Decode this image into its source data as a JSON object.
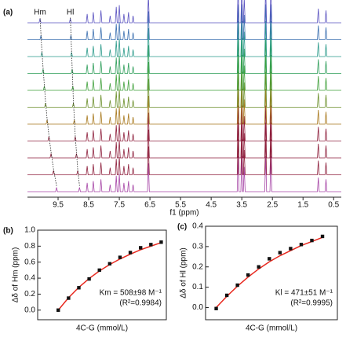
{
  "chart_data": [
    {
      "type": "nmr",
      "label": "(a)",
      "hm_label": "Hm",
      "hl_label": "Hl",
      "xlabel": "f1 (ppm)",
      "xlim": [
        10.5,
        0.25
      ],
      "xticks": [
        9.5,
        8.5,
        7.5,
        6.5,
        5.5,
        4.5,
        3.5,
        2.5,
        1.5,
        0.5
      ],
      "ylim": [
        0,
        100
      ],
      "signal_height": 12,
      "peaks": {
        "ppm": [
          8.55,
          8.35,
          8.1,
          7.8,
          7.6,
          7.5,
          7.35,
          7.2,
          7.05,
          6.55,
          3.62,
          3.5,
          3.42,
          2.72,
          2.55,
          1.0,
          0.75
        ],
        "height": [
          25,
          30,
          35,
          20,
          45,
          50,
          25,
          30,
          20,
          80,
          100,
          100,
          70,
          100,
          100,
          40,
          35
        ]
      },
      "series": [
        {
          "color": "#a645a6",
          "hm": 9.55,
          "hl": 8.8
        },
        {
          "color": "#8e1f3c",
          "hm": 9.65,
          "hl": 8.86
        },
        {
          "color": "#8e1f3c",
          "hm": 9.73,
          "hl": 8.9
        },
        {
          "color": "#8e1f3c",
          "hm": 9.8,
          "hl": 8.94
        },
        {
          "color": "#a8781c",
          "hm": 9.86,
          "hl": 8.97
        },
        {
          "color": "#6b8f2a",
          "hm": 9.91,
          "hl": 9.0
        },
        {
          "color": "#3fa03a",
          "hm": 9.95,
          "hl": 9.02
        },
        {
          "color": "#2e9e5a",
          "hm": 9.99,
          "hl": 9.04
        },
        {
          "color": "#2a9a8a",
          "hm": 10.03,
          "hl": 9.06
        },
        {
          "color": "#3a6fb0",
          "hm": 10.06,
          "hl": 9.08
        },
        {
          "color": "#5a52c0",
          "hm": 10.09,
          "hl": 9.1
        }
      ]
    },
    {
      "type": "scatter",
      "label": "(b)",
      "ylabel": "Δδ of Hm (ppm)",
      "xlabel": "4C-G (mmol/L)",
      "annotation": "Km = 508±98 M⁻¹",
      "annotation2": "(R²=0.9984)",
      "xlim": [
        -2,
        10.5
      ],
      "ylim": [
        -0.12,
        1.0
      ],
      "yticks": [
        {
          "value": 0,
          "label": "0.0"
        },
        {
          "value": 0.2,
          "label": "0.2"
        },
        {
          "value": 0.4,
          "label": "0.4"
        },
        {
          "value": 0.6,
          "label": "0.6"
        },
        {
          "value": 0.8,
          "label": "0.8"
        },
        {
          "value": 1.0,
          "label": "1.0"
        }
      ],
      "x": [
        0,
        1,
        2,
        3,
        4,
        5,
        6,
        7,
        8,
        9,
        10
      ],
      "values": [
        0,
        0.15,
        0.28,
        0.39,
        0.5,
        0.58,
        0.66,
        0.72,
        0.78,
        0.82,
        0.85
      ],
      "fit_values": [
        0,
        0.155,
        0.285,
        0.395,
        0.49,
        0.57,
        0.64,
        0.7,
        0.755,
        0.8,
        0.845
      ],
      "color": "#111111",
      "fit_color": "#e8281e"
    },
    {
      "type": "scatter",
      "label": "(c)",
      "ylabel": "Δδ of Hl (ppm)",
      "xlabel": "4C-G (mmol/L)",
      "annotation": "Kl = 471±51 M⁻¹",
      "annotation2": "(R²=0.9995)",
      "xlim": [
        -1,
        11.4
      ],
      "ylim": [
        -0.06,
        0.4
      ],
      "yticks": [
        {
          "value": 0,
          "label": "0.0"
        },
        0.1,
        0.2,
        0.3,
        0.4
      ],
      "x": [
        0,
        1,
        2,
        3,
        4,
        5,
        6,
        7,
        8,
        9,
        10
      ],
      "values": [
        -0.005,
        0.06,
        0.11,
        0.16,
        0.2,
        0.24,
        0.27,
        0.29,
        0.31,
        0.33,
        0.35
      ],
      "fit_values": [
        0,
        0.055,
        0.105,
        0.15,
        0.19,
        0.225,
        0.255,
        0.28,
        0.305,
        0.325,
        0.345
      ],
      "color": "#111111",
      "fit_color": "#e8281e"
    }
  ]
}
